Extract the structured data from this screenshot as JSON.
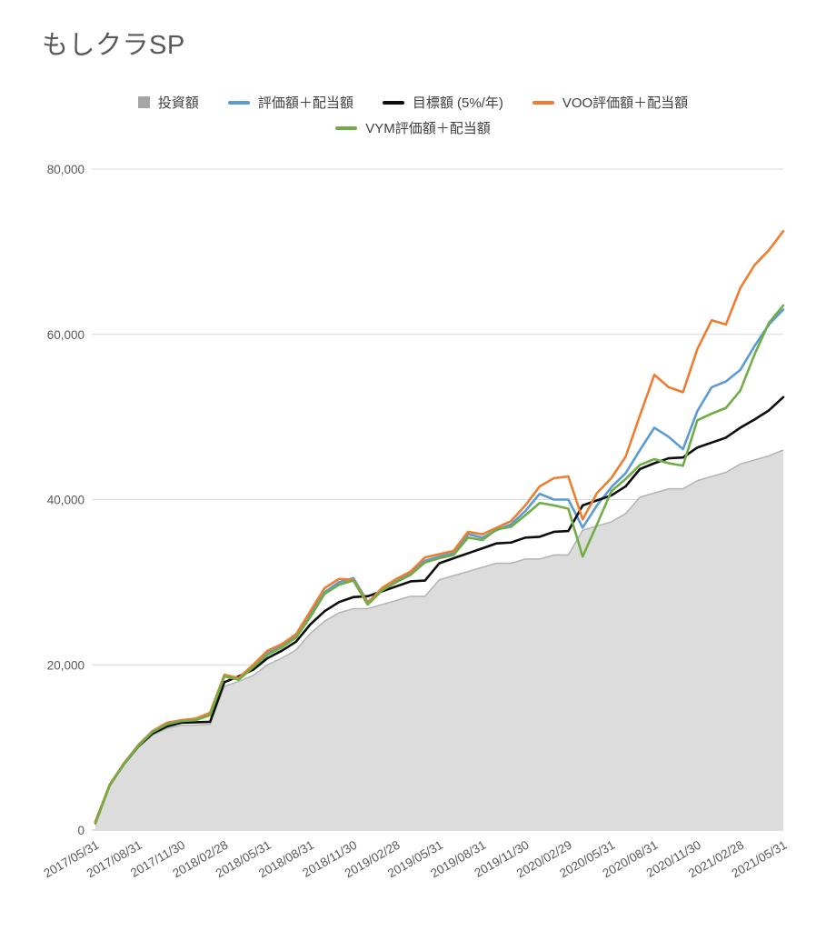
{
  "title": "もしクラSP",
  "legend": {
    "items": [
      {
        "label": "投資額",
        "color": "#a6a6a6",
        "marker": "square"
      },
      {
        "label": "評価額＋配当額",
        "color": "#5b9bd5",
        "marker": "line"
      },
      {
        "label": "目標額 (5%/年)",
        "color": "#0d0d0d",
        "marker": "line"
      },
      {
        "label": "VOO評価額＋配当額",
        "color": "#ed7d31",
        "marker": "line"
      },
      {
        "label": "VYM評価額＋配当額",
        "color": "#70ad47",
        "marker": "line"
      }
    ]
  },
  "axis": {
    "ytick_labels": [
      "0",
      "20,000",
      "40,000",
      "60,000",
      "80,000"
    ],
    "text_color": "#595959",
    "gridline_color": "#d9d9d9",
    "axisline_color": "#c0c0c0"
  },
  "chart_data": {
    "type": "line",
    "title": "もしクラSP",
    "xlabel": "",
    "ylabel": "",
    "ylim": [
      0,
      80000
    ],
    "yticks": [
      0,
      20000,
      40000,
      60000,
      80000
    ],
    "grid": true,
    "legend_position": "top",
    "x_label_every": 3,
    "categories": [
      "2017/05/31",
      "2017/06/30",
      "2017/07/31",
      "2017/08/31",
      "2017/09/30",
      "2017/10/31",
      "2017/11/30",
      "2017/12/31",
      "2018/01/31",
      "2018/02/28",
      "2018/03/31",
      "2018/04/30",
      "2018/05/31",
      "2018/06/30",
      "2018/07/31",
      "2018/08/31",
      "2018/09/30",
      "2018/10/31",
      "2018/11/30",
      "2018/12/31",
      "2019/01/31",
      "2019/02/28",
      "2019/03/31",
      "2019/04/30",
      "2019/05/31",
      "2019/06/30",
      "2019/07/31",
      "2019/08/31",
      "2019/09/30",
      "2019/10/31",
      "2019/11/30",
      "2019/12/31",
      "2020/01/31",
      "2020/02/29",
      "2020/03/31",
      "2020/04/30",
      "2020/05/31",
      "2020/06/30",
      "2020/07/31",
      "2020/08/31",
      "2020/09/30",
      "2020/10/31",
      "2020/11/30",
      "2020/12/31",
      "2021/01/31",
      "2021/02/28",
      "2021/03/31",
      "2021/04/30",
      "2021/05/31"
    ],
    "series": [
      {
        "name": "投資額",
        "type": "area",
        "fill_color": "#dcdcdc",
        "edge_color": "#b3b3b3",
        "values": [
          1000,
          5400,
          7900,
          10000,
          11500,
          12300,
          12700,
          12700,
          12800,
          17400,
          18000,
          18700,
          20000,
          20800,
          21800,
          23800,
          25300,
          26300,
          26800,
          26800,
          27300,
          27800,
          28300,
          28300,
          30300,
          30800,
          31300,
          31800,
          32300,
          32300,
          32800,
          32800,
          33300,
          33300,
          36300,
          36800,
          37300,
          38300,
          40300,
          40800,
          41300,
          41300,
          42300,
          42800,
          43300,
          44300,
          44800,
          45300,
          46000
        ]
      },
      {
        "name": "評価額＋配当額",
        "type": "line",
        "color": "#5b9bd5",
        "values": [
          900,
          5500,
          8100,
          10300,
          12000,
          12900,
          13300,
          13400,
          14100,
          18700,
          18300,
          19900,
          21500,
          22300,
          23500,
          26200,
          28800,
          30000,
          30500,
          27600,
          29100,
          30200,
          31100,
          32600,
          33100,
          33500,
          35800,
          35400,
          36300,
          37000,
          38600,
          40700,
          40000,
          40000,
          36600,
          39300,
          41500,
          43200,
          46000,
          48700,
          47600,
          46100,
          50700,
          53600,
          54300,
          55700,
          58600,
          61200,
          63000
        ]
      },
      {
        "name": "目標額 (5%/年)",
        "type": "line",
        "color": "#0d0d0d",
        "values": [
          1000,
          5450,
          8000,
          10150,
          11700,
          12550,
          13000,
          13050,
          13100,
          17900,
          18600,
          19400,
          20800,
          21700,
          22800,
          24900,
          26500,
          27600,
          28200,
          28300,
          28900,
          29500,
          30100,
          30200,
          32300,
          32900,
          33500,
          34100,
          34700,
          34800,
          35400,
          35500,
          36100,
          36200,
          39300,
          39900,
          40500,
          41600,
          43700,
          44400,
          45000,
          45100,
          46300,
          46900,
          47500,
          48700,
          49700,
          50800,
          52400
        ]
      },
      {
        "name": "VOO評価額＋配当額",
        "type": "line",
        "color": "#ed7d31",
        "values": [
          1000,
          5500,
          8100,
          10300,
          12000,
          13000,
          13300,
          13500,
          14200,
          18800,
          18400,
          20000,
          21700,
          22500,
          23700,
          26500,
          29300,
          30400,
          30300,
          27500,
          29300,
          30400,
          31300,
          33000,
          33400,
          33800,
          36100,
          35800,
          36600,
          37400,
          39300,
          41600,
          42600,
          42800,
          37600,
          40800,
          42600,
          45200,
          50200,
          55100,
          53600,
          53000,
          58200,
          61700,
          61200,
          65600,
          68400,
          70200,
          72500
        ]
      },
      {
        "name": "VYM評価額＋配当額",
        "type": "line",
        "color": "#70ad47",
        "values": [
          800,
          5400,
          8000,
          10200,
          11900,
          12800,
          13200,
          13300,
          13900,
          18600,
          18200,
          19700,
          21200,
          22100,
          23300,
          25800,
          28600,
          29700,
          30200,
          27300,
          29000,
          30000,
          30900,
          32400,
          32900,
          33300,
          35400,
          35100,
          36400,
          36700,
          38100,
          39600,
          39300,
          38900,
          33100,
          37000,
          41000,
          42500,
          44200,
          44900,
          44400,
          44100,
          49600,
          50400,
          51100,
          53200,
          57600,
          61400,
          63500
        ]
      }
    ]
  }
}
